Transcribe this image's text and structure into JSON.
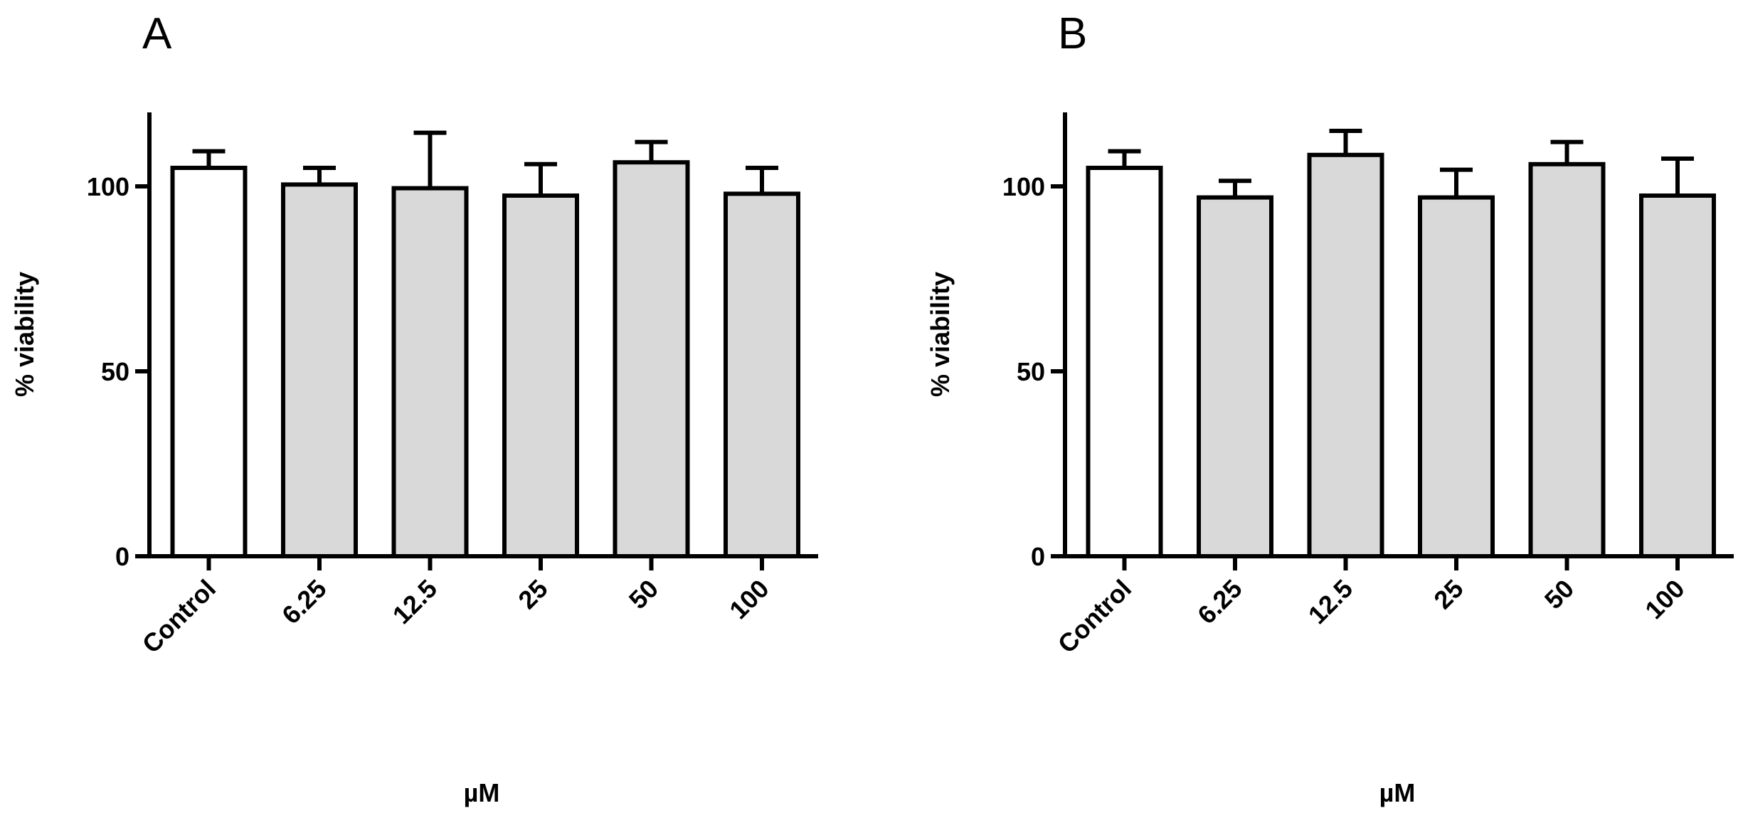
{
  "chart_data": [
    {
      "type": "bar",
      "panel_label": "A",
      "categories": [
        "Control",
        "6.25",
        "12.5",
        "25",
        "50",
        "100"
      ],
      "values": [
        105,
        100.5,
        99.5,
        97.5,
        106.5,
        98
      ],
      "error": [
        4.5,
        4.5,
        15,
        8.5,
        5.5,
        7
      ],
      "bar_colors": [
        "#ffffff",
        "#d9d9d9",
        "#d9d9d9",
        "#d9d9d9",
        "#d9d9d9",
        "#d9d9d9"
      ],
      "xlabel": "µM",
      "ylabel": "% viability",
      "ylim": [
        0,
        120
      ],
      "yticks": [
        0,
        50,
        100
      ],
      "grid": false
    },
    {
      "type": "bar",
      "panel_label": "B",
      "categories": [
        "Control",
        "6.25",
        "12.5",
        "25",
        "50",
        "100"
      ],
      "values": [
        105,
        97,
        108.5,
        97,
        106,
        97.5
      ],
      "error": [
        4.5,
        4.5,
        6.5,
        7.5,
        6,
        10
      ],
      "bar_colors": [
        "#ffffff",
        "#d9d9d9",
        "#d9d9d9",
        "#d9d9d9",
        "#d9d9d9",
        "#d9d9d9"
      ],
      "xlabel": "µM",
      "ylabel": "% viability",
      "ylim": [
        0,
        120
      ],
      "yticks": [
        0,
        50,
        100
      ],
      "grid": false
    }
  ]
}
